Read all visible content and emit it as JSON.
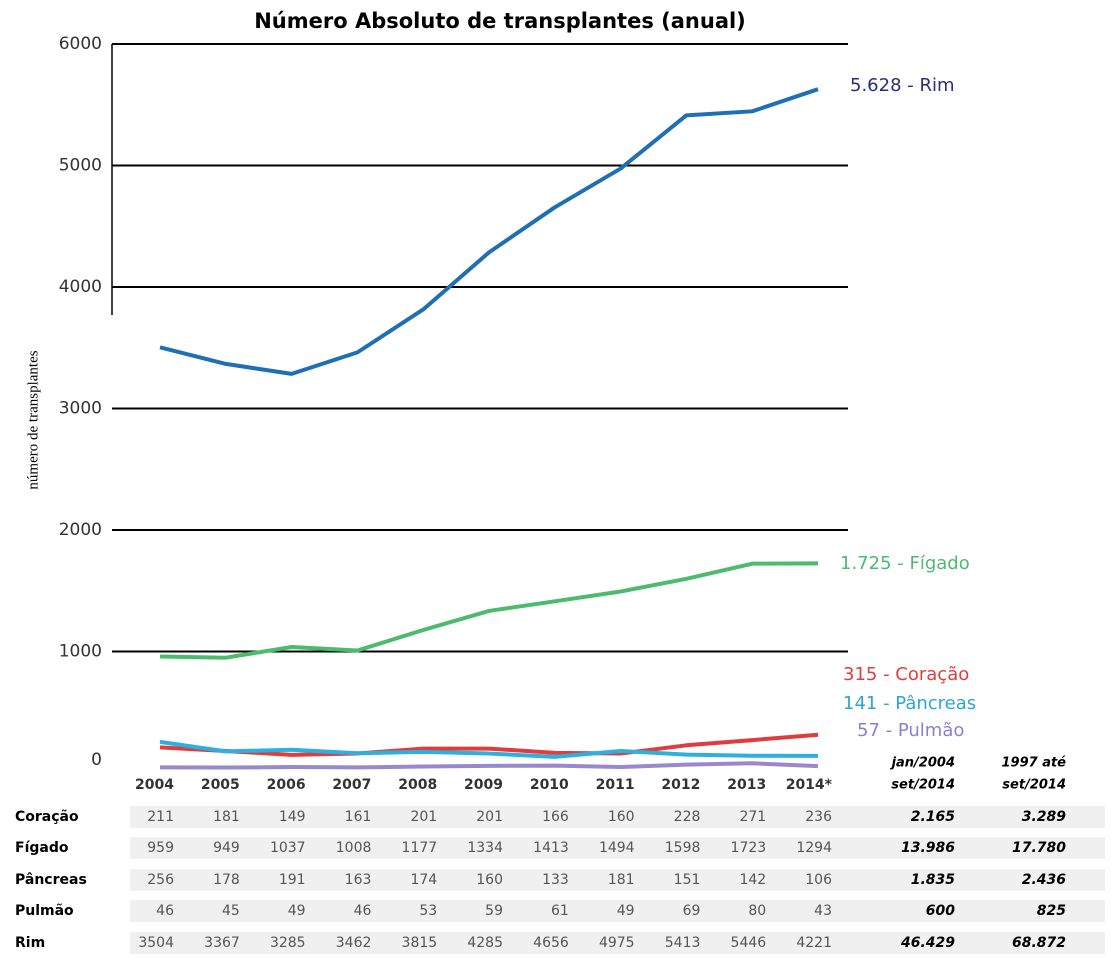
{
  "chart_data": {
    "type": "line",
    "title": "Número Absoluto de transplantes (anual)",
    "y_label": "número de transplantes",
    "categories": [
      "2004",
      "2005",
      "2006",
      "2007",
      "2008",
      "2009",
      "2010",
      "2011",
      "2012",
      "2013",
      "2014*"
    ],
    "ylim": [
      0,
      6000
    ],
    "yticks": [
      0,
      1000,
      2000,
      3000,
      4000,
      5000,
      6000
    ],
    "grid": true,
    "series": [
      {
        "name": "Coração",
        "color": "#e03c3c",
        "label_color": "#e03c3c",
        "end_label": "315 - Coração",
        "values": [
          211,
          181,
          149,
          161,
          201,
          201,
          166,
          160,
          228,
          271,
          315
        ],
        "table_values": [
          211,
          181,
          149,
          161,
          201,
          201,
          166,
          160,
          228,
          271,
          236
        ],
        "totals": [
          "2.165",
          "3.289"
        ]
      },
      {
        "name": "Fígado",
        "color": "#4cbb6e",
        "label_color": "#4cbb6e",
        "end_label": "1.725 - Fígado",
        "values": [
          959,
          949,
          1037,
          1008,
          1177,
          1334,
          1413,
          1494,
          1598,
          1723,
          1725
        ],
        "table_values": [
          959,
          949,
          1037,
          1008,
          1177,
          1334,
          1413,
          1494,
          1598,
          1723,
          1294
        ],
        "totals": [
          "13.986",
          "17.780"
        ]
      },
      {
        "name": "Pâncreas",
        "color": "#2bb0e0",
        "label_color": "#2ba6d6",
        "end_label": "141 - Pâncreas",
        "values": [
          256,
          178,
          191,
          163,
          174,
          160,
          133,
          181,
          151,
          142,
          141
        ],
        "table_values": [
          256,
          178,
          191,
          163,
          174,
          160,
          133,
          181,
          151,
          142,
          106
        ],
        "totals": [
          "1.835",
          "2.436"
        ]
      },
      {
        "name": "Pulmão",
        "color": "#9a88cc",
        "label_color": "#8a7fd6",
        "end_label": "57 - Pulmão",
        "values": [
          46,
          45,
          49,
          46,
          53,
          59,
          61,
          49,
          69,
          80,
          57
        ],
        "table_values": [
          46,
          45,
          49,
          46,
          53,
          59,
          61,
          49,
          69,
          80,
          43
        ],
        "totals": [
          "600",
          "825"
        ]
      },
      {
        "name": "Rim",
        "color": "#1f6fb5",
        "label_color": "#2b2d7a",
        "end_label": "5.628 - Rim",
        "values": [
          3504,
          3367,
          3285,
          3462,
          3815,
          4285,
          4656,
          4975,
          5413,
          5446,
          5628
        ],
        "table_values": [
          3504,
          3367,
          3285,
          3462,
          3815,
          4285,
          4656,
          4975,
          5413,
          5446,
          4221
        ],
        "totals": [
          "46.429",
          "68.872"
        ]
      }
    ],
    "total_headers": [
      [
        "jan/2004",
        "set/2014"
      ],
      [
        "1997 até",
        "set/2014"
      ]
    ]
  }
}
